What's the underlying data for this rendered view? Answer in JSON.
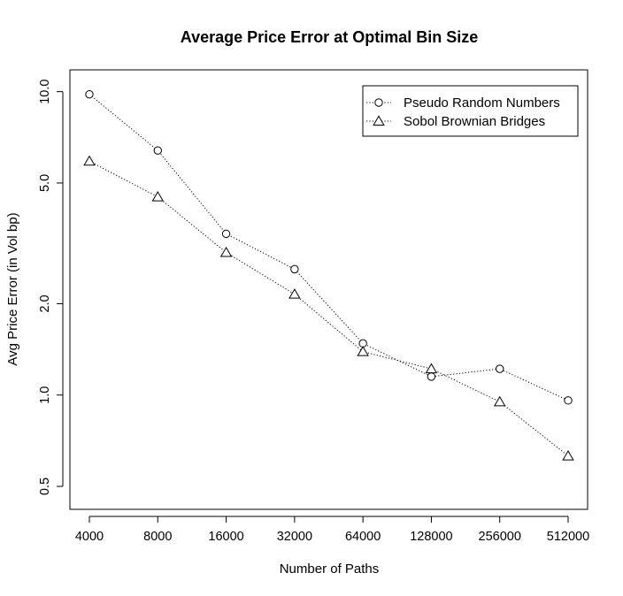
{
  "chart_data": {
    "type": "line",
    "title": "Average Price Error at Optimal Bin Size",
    "xlabel": "Number of Paths",
    "ylabel": "Avg Price Error (in Vol bp)",
    "x": [
      4000,
      8000,
      16000,
      32000,
      64000,
      128000,
      256000,
      512000
    ],
    "x_tick_labels": [
      "4000",
      "8000",
      "16000",
      "32000",
      "64000",
      "128000",
      "256000",
      "512000"
    ],
    "x_scale": "log",
    "y_scale": "log",
    "ylim": [
      0.42,
      11.8
    ],
    "y_ticks": [
      0.5,
      1.0,
      2.0,
      5.0,
      10.0
    ],
    "y_tick_labels": [
      "0.5",
      "1.0",
      "2.0",
      "5.0",
      "10.0"
    ],
    "grid": false,
    "legend_position": "top-right",
    "series": [
      {
        "name": "Pseudo Random Numbers",
        "marker": "circle",
        "line_style": "dotted",
        "values": [
          9.8,
          6.4,
          3.4,
          2.6,
          1.48,
          1.15,
          1.22,
          0.96
        ]
      },
      {
        "name": "Sobol Brownian Bridges",
        "marker": "triangle",
        "line_style": "dotted",
        "values": [
          5.9,
          4.5,
          2.95,
          2.15,
          1.39,
          1.22,
          0.95,
          0.63
        ]
      }
    ]
  }
}
